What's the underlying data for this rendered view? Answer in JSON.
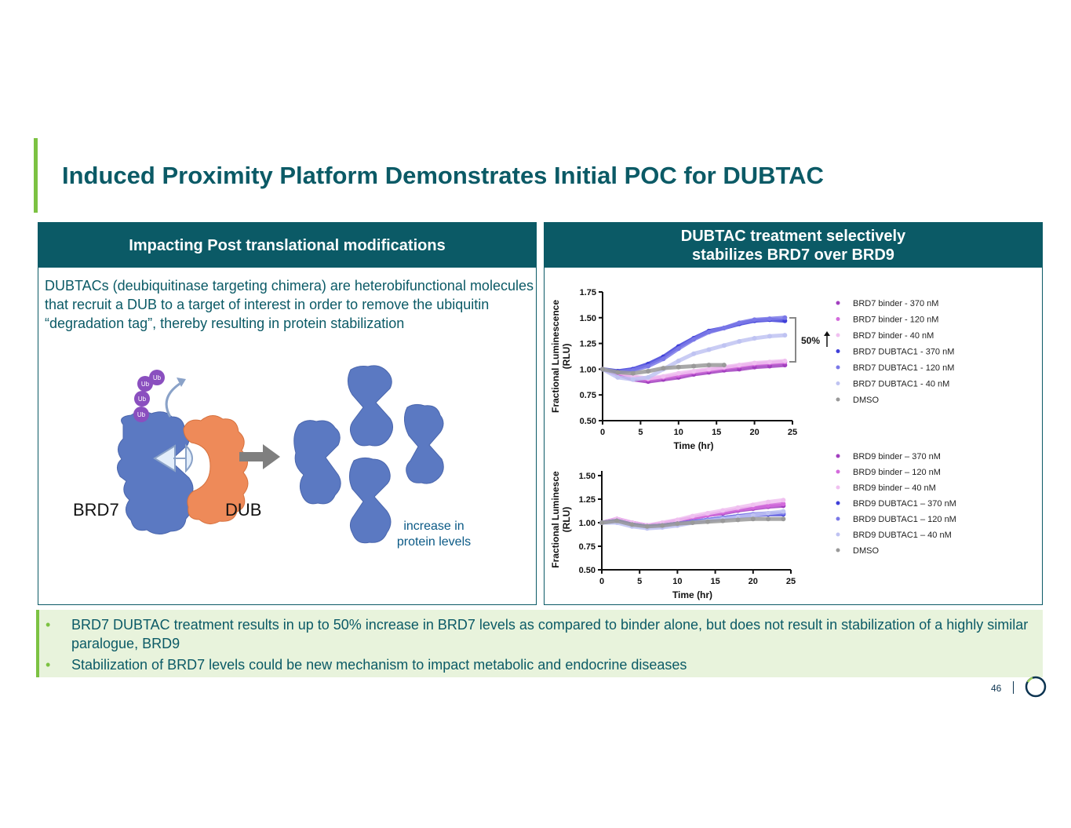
{
  "title": "Induced Proximity Platform Demonstrates Initial POC for DUBTAC",
  "left_panel": {
    "header": "Impacting Post translational modifications",
    "description": "DUBTACs (deubiquitinase targeting chimera) are heterobifunctional molecules that recruit a DUB to a target of interest in order to remove the ubiquitin “degradation tag”, thereby resulting in protein stabilization",
    "illustration": {
      "target_label": "BRD7",
      "dub_label": "DUB",
      "ub_label": "Ub",
      "result_label_1": "increase in",
      "result_label_2": "protein levels",
      "colors": {
        "target": "#5b79c2",
        "dub": "#ee8a59",
        "ub": "#8a4fbf",
        "arrow": "#7f7f7f"
      }
    }
  },
  "right_panel": {
    "header_line1": "DUBTAC treatment selectively",
    "header_line2": "stabilizes BRD7 over BRD9"
  },
  "chart_data": [
    {
      "type": "scatter",
      "title": "",
      "xlabel": "Time (hr)",
      "ylabel_line1": "Fractional  Luminescence",
      "ylabel_line2": "(RLU)",
      "xlim": [
        0,
        25
      ],
      "ylim": [
        0.5,
        1.75
      ],
      "xticks": [
        "0",
        "5",
        "10",
        "15",
        "20",
        "25"
      ],
      "yticks": [
        "0.50",
        "0.75",
        "1.00",
        "1.25",
        "1.50",
        "1.75"
      ],
      "annotation": "50%",
      "legend_placement": "right",
      "x": [
        0,
        2,
        4,
        6,
        8,
        10,
        12,
        14,
        16,
        18,
        20,
        22,
        24
      ],
      "series": [
        {
          "name": "BRD7 binder - 370 nM",
          "color": "#a23fbf",
          "values": [
            1.0,
            0.95,
            0.9,
            0.88,
            0.9,
            0.92,
            0.95,
            0.97,
            0.99,
            1.0,
            1.02,
            1.03,
            1.04
          ]
        },
        {
          "name": "BRD7 binder -  120 nM",
          "color": "#d46bdc",
          "values": [
            1.0,
            0.96,
            0.92,
            0.9,
            0.92,
            0.94,
            0.97,
            0.99,
            1.01,
            1.03,
            1.05,
            1.06,
            1.07
          ]
        },
        {
          "name": "BRD7 binder -  40 nM",
          "color": "#f0c0f0",
          "values": [
            1.0,
            0.97,
            0.93,
            0.91,
            0.93,
            0.96,
            0.98,
            1.0,
            1.02,
            1.04,
            1.06,
            1.07,
            1.08
          ]
        },
        {
          "name": "BRD7 DUBTAC1 -  370 nM",
          "color": "#3f3fd8",
          "values": [
            1.0,
            0.98,
            1.0,
            1.05,
            1.12,
            1.22,
            1.3,
            1.37,
            1.4,
            1.44,
            1.47,
            1.48,
            1.47
          ]
        },
        {
          "name": "BRD7 DUBTAC1 - 120 nM",
          "color": "#7a78e8",
          "values": [
            1.0,
            0.97,
            0.99,
            1.03,
            1.1,
            1.2,
            1.29,
            1.36,
            1.4,
            1.45,
            1.48,
            1.49,
            1.5
          ]
        },
        {
          "name": "BRD7 DUBTAC1 -  40 nM",
          "color": "#bfc3f2",
          "values": [
            1.0,
            0.92,
            0.9,
            0.92,
            1.0,
            1.08,
            1.15,
            1.19,
            1.23,
            1.27,
            1.3,
            1.32,
            1.33
          ]
        },
        {
          "name": "DMSO",
          "color": "#999999",
          "values": [
            1.0,
            0.97,
            0.96,
            0.98,
            1.01,
            1.02,
            1.03,
            1.04,
            1.04,
            null,
            null,
            null,
            null
          ]
        }
      ]
    },
    {
      "type": "scatter",
      "title": "",
      "xlabel": "Time (hr)",
      "ylabel_line1": "Fractional  Luminesce",
      "ylabel_line2": "(RLU)",
      "xlim": [
        0,
        25
      ],
      "ylim": [
        0.5,
        1.55
      ],
      "xticks": [
        "0",
        "5",
        "10",
        "15",
        "20",
        "25"
      ],
      "yticks": [
        "0.50",
        "0.75",
        "1.00",
        "1.25",
        "1.50"
      ],
      "legend_placement": "right",
      "x": [
        0,
        2,
        4,
        6,
        8,
        10,
        12,
        14,
        16,
        18,
        20,
        22,
        24
      ],
      "series": [
        {
          "name": "BRD9 binder – 370 nM",
          "color": "#a23fbf",
          "values": [
            1.0,
            1.04,
            1.0,
            0.97,
            0.99,
            1.02,
            1.05,
            1.08,
            1.1,
            1.13,
            1.15,
            1.17,
            1.18
          ]
        },
        {
          "name": "BRD9 binder – 120 nM",
          "color": "#d46bdc",
          "values": [
            1.0,
            1.04,
            1.0,
            0.97,
            0.99,
            1.02,
            1.05,
            1.08,
            1.11,
            1.14,
            1.16,
            1.18,
            1.2
          ]
        },
        {
          "name": "BRD9 binder – 40 nM",
          "color": "#f0c0f0",
          "values": [
            1.0,
            1.04,
            1.0,
            0.97,
            1.0,
            1.03,
            1.07,
            1.1,
            1.13,
            1.16,
            1.19,
            1.22,
            1.24
          ]
        },
        {
          "name": "BRD9 DUBTAC1 – 370 nM",
          "color": "#3f3fd8",
          "values": [
            1.0,
            1.02,
            0.98,
            0.96,
            0.97,
            0.99,
            1.01,
            1.03,
            1.05,
            1.07,
            1.08,
            1.09,
            1.09
          ]
        },
        {
          "name": "BRD9 DUBTAC1 – 120 nM",
          "color": "#7a78e8",
          "values": [
            1.0,
            1.02,
            0.98,
            0.96,
            0.97,
            0.99,
            1.01,
            1.03,
            1.05,
            1.07,
            1.09,
            1.1,
            1.1
          ]
        },
        {
          "name": "BRD9 DUBTAC1 – 40 nM",
          "color": "#bfc3f2",
          "values": [
            1.0,
            1.0,
            0.96,
            0.94,
            0.95,
            0.97,
            1.0,
            1.02,
            1.04,
            1.06,
            1.08,
            1.1,
            1.12
          ]
        },
        {
          "name": "DMSO",
          "color": "#999999",
          "values": [
            1.0,
            1.02,
            0.98,
            0.96,
            0.97,
            0.99,
            1.0,
            1.01,
            1.02,
            1.03,
            1.04,
            1.04,
            1.04
          ]
        }
      ]
    }
  ],
  "bullets": [
    "BRD7 DUBTAC treatment results in up to 50% increase in BRD7 levels as compared to binder alone, but does not result in stabilization of a highly similar paralogue, BRD9",
    "Stabilization of BRD7 levels could be new mechanism to impact metabolic and endocrine diseases"
  ],
  "bullet_char": "•",
  "page_number": "46",
  "colors": {
    "brand_teal": "#0b5a66",
    "accent_green": "#7cc242",
    "bullet_bg": "#e8f3dc"
  }
}
